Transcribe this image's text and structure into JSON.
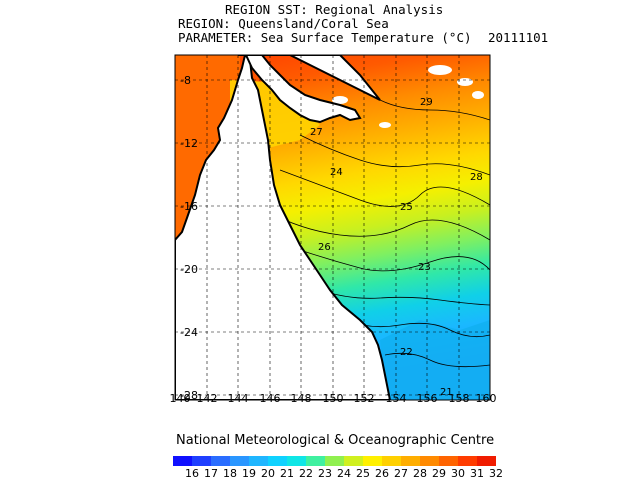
{
  "header": {
    "title": "REGION SST: Regional Analysis",
    "region_line": "REGION: Queensland/Coral Sea",
    "parameter_line": "PARAMETER: Sea Surface Temperature (°C)",
    "date": "20111101"
  },
  "map": {
    "lat_labels": [
      "-8",
      "-12",
      "-16",
      "-20",
      "-24",
      "-28"
    ],
    "lon_labels": [
      "140",
      "142",
      "144",
      "146",
      "148",
      "150",
      "152",
      "154",
      "156",
      "158",
      "160"
    ],
    "contour_labels": [
      "29",
      "28",
      "27",
      "26",
      "25",
      "24",
      "23",
      "22",
      "21"
    ]
  },
  "footer": {
    "credit": "National Meteorological & Oceanographic Centre"
  },
  "colorbar": {
    "labels": [
      "16",
      "17",
      "18",
      "19",
      "20",
      "21",
      "22",
      "23",
      "24",
      "25",
      "26",
      "27",
      "28",
      "29",
      "30",
      "31",
      "32"
    ],
    "colors": [
      "#1010ff",
      "#1f3fff",
      "#2a6dff",
      "#2a96ff",
      "#20b6ff",
      "#10d2ff",
      "#10e6e6",
      "#40f0a0",
      "#90f050",
      "#d0f020",
      "#fff000",
      "#ffd000",
      "#ffae00",
      "#ff8a00",
      "#ff6400",
      "#ff3c00",
      "#f01c00"
    ]
  }
}
